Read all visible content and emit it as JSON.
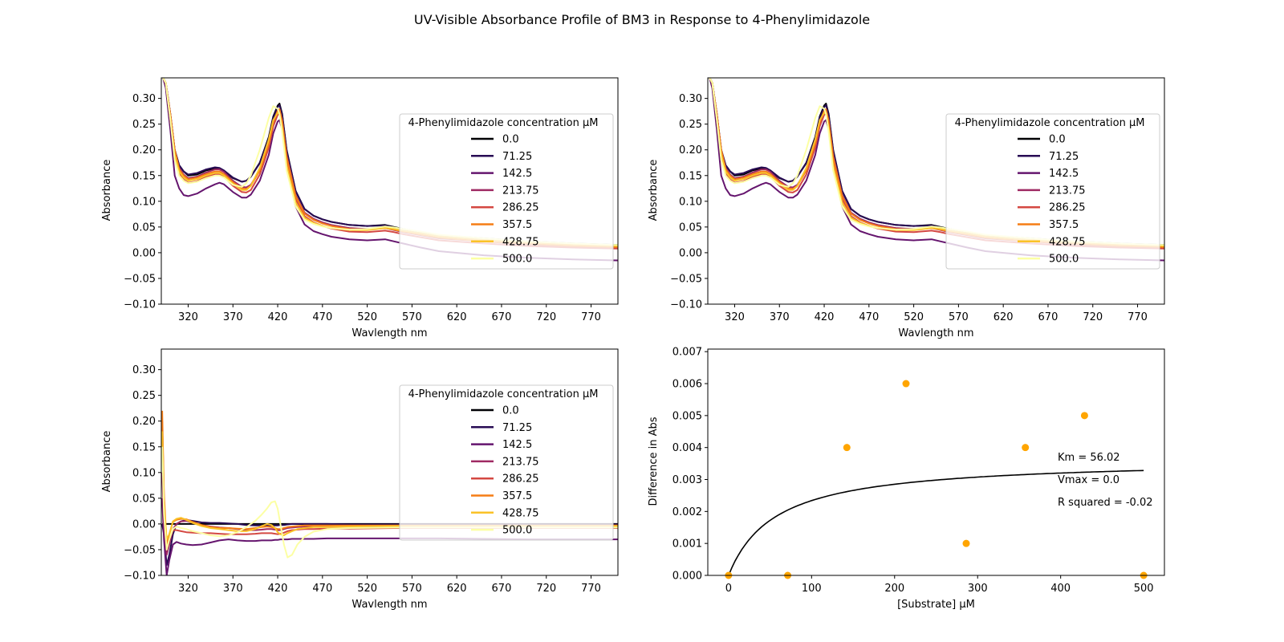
{
  "figure": {
    "suptitle": "UV-Visible Absorbance Profile of BM3 in Response to 4-Phenylimidazole"
  },
  "chart_data": [
    {
      "panel": "top-left",
      "type": "line",
      "xlabel": "Wavlength nm",
      "ylabel": "Absorbance",
      "xlim": [
        290,
        800
      ],
      "ylim": [
        -0.1,
        0.34
      ],
      "x_ticks": [
        320,
        370,
        420,
        470,
        520,
        570,
        620,
        670,
        720,
        770
      ],
      "y_ticks": [
        -0.1,
        -0.05,
        0.0,
        0.05,
        0.1,
        0.15,
        0.2,
        0.25,
        0.3
      ],
      "legend": {
        "title": "4-Phenylimidazole concentration µM",
        "placement": "right"
      },
      "x": [
        292,
        295,
        300,
        305,
        310,
        315,
        320,
        330,
        340,
        350,
        355,
        360,
        370,
        380,
        385,
        390,
        400,
        410,
        415,
        420,
        422,
        425,
        430,
        440,
        450,
        460,
        470,
        480,
        500,
        520,
        540,
        550,
        560,
        580,
        600,
        650,
        700,
        750,
        800
      ],
      "series": [
        {
          "name": "0.0",
          "color": "#000004",
          "values": [
            0.34,
            0.33,
            0.27,
            0.2,
            0.17,
            0.158,
            0.15,
            0.152,
            0.16,
            0.164,
            0.163,
            0.158,
            0.145,
            0.138,
            0.14,
            0.148,
            0.175,
            0.225,
            0.265,
            0.286,
            0.29,
            0.27,
            0.2,
            0.12,
            0.085,
            0.072,
            0.065,
            0.06,
            0.054,
            0.052,
            0.054,
            0.05,
            0.046,
            0.04,
            0.034,
            0.028,
            0.022,
            0.018,
            0.015
          ]
        },
        {
          "name": "71.25",
          "color": "#280b54",
          "values": [
            0.34,
            0.33,
            0.27,
            0.2,
            0.17,
            0.158,
            0.152,
            0.155,
            0.162,
            0.166,
            0.165,
            0.16,
            0.146,
            0.138,
            0.14,
            0.148,
            0.174,
            0.222,
            0.262,
            0.283,
            0.287,
            0.268,
            0.198,
            0.12,
            0.085,
            0.072,
            0.065,
            0.06,
            0.054,
            0.052,
            0.053,
            0.049,
            0.045,
            0.039,
            0.033,
            0.027,
            0.021,
            0.017,
            0.014
          ]
        },
        {
          "name": "142.5",
          "color": "#65156e",
          "values": [
            0.34,
            0.32,
            0.24,
            0.15,
            0.125,
            0.112,
            0.11,
            0.115,
            0.125,
            0.133,
            0.136,
            0.133,
            0.118,
            0.107,
            0.107,
            0.113,
            0.14,
            0.19,
            0.232,
            0.255,
            0.258,
            0.24,
            0.17,
            0.09,
            0.055,
            0.042,
            0.036,
            0.031,
            0.026,
            0.024,
            0.026,
            0.022,
            0.018,
            0.01,
            0.003,
            -0.005,
            -0.01,
            -0.013,
            -0.015
          ]
        },
        {
          "name": "213.75",
          "color": "#9f2a63",
          "values": [
            0.34,
            0.33,
            0.27,
            0.2,
            0.165,
            0.152,
            0.145,
            0.148,
            0.156,
            0.162,
            0.162,
            0.157,
            0.14,
            0.128,
            0.127,
            0.132,
            0.16,
            0.21,
            0.252,
            0.275,
            0.278,
            0.258,
            0.19,
            0.112,
            0.078,
            0.066,
            0.059,
            0.054,
            0.048,
            0.046,
            0.048,
            0.044,
            0.04,
            0.034,
            0.028,
            0.022,
            0.016,
            0.012,
            0.01
          ]
        },
        {
          "name": "286.25",
          "color": "#d44842",
          "values": [
            0.34,
            0.33,
            0.26,
            0.19,
            0.155,
            0.142,
            0.136,
            0.139,
            0.147,
            0.153,
            0.153,
            0.148,
            0.13,
            0.118,
            0.117,
            0.122,
            0.152,
            0.204,
            0.246,
            0.268,
            0.271,
            0.25,
            0.18,
            0.104,
            0.071,
            0.059,
            0.052,
            0.047,
            0.041,
            0.04,
            0.043,
            0.04,
            0.036,
            0.03,
            0.024,
            0.018,
            0.013,
            0.01,
            0.008
          ]
        },
        {
          "name": "357.5",
          "color": "#f57d15",
          "values": [
            0.34,
            0.33,
            0.27,
            0.2,
            0.162,
            0.15,
            0.143,
            0.146,
            0.153,
            0.158,
            0.158,
            0.153,
            0.137,
            0.125,
            0.124,
            0.13,
            0.16,
            0.212,
            0.254,
            0.276,
            0.279,
            0.256,
            0.186,
            0.11,
            0.076,
            0.064,
            0.057,
            0.052,
            0.046,
            0.045,
            0.048,
            0.045,
            0.041,
            0.035,
            0.029,
            0.022,
            0.017,
            0.013,
            0.011
          ]
        },
        {
          "name": "428.75",
          "color": "#fac228",
          "values": [
            0.34,
            0.33,
            0.26,
            0.19,
            0.158,
            0.146,
            0.14,
            0.143,
            0.15,
            0.155,
            0.155,
            0.15,
            0.134,
            0.122,
            0.122,
            0.13,
            0.165,
            0.22,
            0.258,
            0.272,
            0.27,
            0.242,
            0.17,
            0.098,
            0.068,
            0.058,
            0.052,
            0.048,
            0.044,
            0.044,
            0.048,
            0.046,
            0.043,
            0.038,
            0.032,
            0.025,
            0.02,
            0.016,
            0.013
          ]
        },
        {
          "name": "500.0",
          "color": "#fcffa4",
          "values": [
            0.34,
            0.33,
            0.26,
            0.18,
            0.15,
            0.14,
            0.135,
            0.138,
            0.145,
            0.15,
            0.15,
            0.146,
            0.132,
            0.128,
            0.135,
            0.15,
            0.2,
            0.262,
            0.285,
            0.28,
            0.27,
            0.235,
            0.16,
            0.09,
            0.064,
            0.056,
            0.051,
            0.048,
            0.045,
            0.046,
            0.051,
            0.049,
            0.046,
            0.041,
            0.035,
            0.028,
            0.022,
            0.018,
            0.015
          ]
        }
      ]
    },
    {
      "panel": "top-right",
      "type": "line",
      "xlabel": "Wavlength nm",
      "ylabel": "Absorbance",
      "xlim": [
        290,
        800
      ],
      "ylim": [
        -0.1,
        0.34
      ],
      "x_ticks": [
        320,
        370,
        420,
        470,
        520,
        570,
        620,
        670,
        720,
        770
      ],
      "y_ticks": [
        -0.1,
        -0.05,
        0.0,
        0.05,
        0.1,
        0.15,
        0.2,
        0.25,
        0.3
      ],
      "legend": {
        "title": "4-Phenylimidazole concentration µM",
        "placement": "right"
      },
      "same_series_as_panel": "top-left"
    },
    {
      "panel": "bottom-left",
      "type": "line",
      "xlabel": "Wavlength nm",
      "ylabel": "Absorbance",
      "xlim": [
        290,
        800
      ],
      "ylim": [
        -0.1,
        0.34
      ],
      "x_ticks": [
        320,
        370,
        420,
        470,
        520,
        570,
        620,
        670,
        720,
        770
      ],
      "y_ticks": [
        -0.1,
        -0.05,
        0.0,
        0.05,
        0.1,
        0.15,
        0.2,
        0.25,
        0.3
      ],
      "legend": {
        "title": "4-Phenylimidazole concentration µM",
        "placement": "right"
      },
      "x": [
        291,
        293,
        296,
        299,
        303,
        307,
        312,
        318,
        325,
        335,
        345,
        355,
        365,
        375,
        385,
        395,
        402,
        408,
        413,
        417,
        420,
        423,
        427,
        431,
        436,
        442,
        450,
        460,
        475,
        500,
        550,
        600,
        650,
        700,
        750,
        800
      ],
      "series": [
        {
          "name": "0.0",
          "color": "#000004",
          "values": [
            0.0,
            0.0,
            0.0,
            0.0,
            0.0,
            0.0,
            0.0,
            0.0,
            0.0,
            0.0,
            0.0,
            0.0,
            0.0,
            0.0,
            0.0,
            0.0,
            0.0,
            0.0,
            0.0,
            0.0,
            0.0,
            0.0,
            0.0,
            0.0,
            0.0,
            0.0,
            0.0,
            0.0,
            0.0,
            0.0,
            0.0,
            0.0,
            0.0,
            0.0,
            0.0,
            0.0
          ]
        },
        {
          "name": "71.25",
          "color": "#280b54",
          "values": [
            0.0,
            -0.02,
            -0.08,
            -0.06,
            -0.02,
            0.0,
            0.005,
            0.008,
            0.006,
            0.003,
            0.002,
            0.002,
            0.001,
            0.0,
            -0.002,
            -0.003,
            -0.003,
            -0.003,
            -0.003,
            -0.003,
            -0.003,
            -0.002,
            -0.002,
            -0.001,
            0.0,
            0.0,
            0.0,
            0.0,
            0.0,
            -0.001,
            -0.001,
            -0.001,
            -0.001,
            -0.001,
            -0.001,
            -0.001
          ]
        },
        {
          "name": "142.5",
          "color": "#65156e",
          "values": [
            0.05,
            -0.03,
            -0.1,
            -0.07,
            -0.04,
            -0.035,
            -0.038,
            -0.04,
            -0.041,
            -0.04,
            -0.036,
            -0.032,
            -0.03,
            -0.032,
            -0.033,
            -0.033,
            -0.032,
            -0.032,
            -0.032,
            -0.031,
            -0.031,
            -0.03,
            -0.03,
            -0.03,
            -0.029,
            -0.029,
            -0.029,
            -0.029,
            -0.028,
            -0.028,
            -0.028,
            -0.028,
            -0.029,
            -0.03,
            -0.03,
            -0.03
          ]
        },
        {
          "name": "213.75",
          "color": "#9f2a63",
          "values": [
            0.1,
            0.0,
            -0.06,
            -0.04,
            -0.01,
            0.0,
            0.005,
            0.006,
            0.002,
            -0.002,
            -0.005,
            -0.007,
            -0.008,
            -0.01,
            -0.012,
            -0.012,
            -0.011,
            -0.01,
            -0.01,
            -0.011,
            -0.012,
            -0.012,
            -0.01,
            -0.008,
            -0.007,
            -0.006,
            -0.005,
            -0.005,
            -0.005,
            -0.005,
            -0.005,
            -0.005,
            -0.005,
            -0.005,
            -0.005,
            -0.005
          ]
        },
        {
          "name": "286.25",
          "color": "#d44842",
          "values": [
            0.2,
            0.05,
            -0.05,
            -0.03,
            -0.012,
            -0.012,
            -0.014,
            -0.016,
            -0.017,
            -0.018,
            -0.018,
            -0.019,
            -0.02,
            -0.02,
            -0.02,
            -0.019,
            -0.018,
            -0.018,
            -0.018,
            -0.019,
            -0.02,
            -0.019,
            -0.017,
            -0.014,
            -0.012,
            -0.011,
            -0.01,
            -0.01,
            -0.009,
            -0.009,
            -0.008,
            -0.008,
            -0.008,
            -0.008,
            -0.008,
            -0.008
          ]
        },
        {
          "name": "357.5",
          "color": "#f57d15",
          "values": [
            0.22,
            0.06,
            -0.04,
            -0.02,
            0.004,
            0.008,
            0.01,
            0.009,
            0.004,
            -0.002,
            -0.006,
            -0.008,
            -0.008,
            -0.009,
            -0.01,
            -0.008,
            -0.006,
            -0.005,
            -0.006,
            -0.008,
            -0.01,
            -0.01,
            -0.008,
            -0.006,
            -0.005,
            -0.004,
            -0.003,
            -0.003,
            -0.003,
            -0.003,
            -0.003,
            -0.003,
            -0.003,
            -0.003,
            -0.003,
            -0.003
          ]
        },
        {
          "name": "428.75",
          "color": "#fac228",
          "values": [
            0.18,
            0.04,
            -0.03,
            -0.02,
            0.005,
            0.01,
            0.012,
            0.008,
            0.002,
            -0.004,
            -0.008,
            -0.01,
            -0.012,
            -0.014,
            -0.014,
            -0.01,
            -0.004,
            0.0,
            -0.002,
            -0.008,
            -0.016,
            -0.02,
            -0.022,
            -0.018,
            -0.014,
            -0.01,
            -0.008,
            -0.006,
            -0.006,
            -0.005,
            -0.004,
            -0.004,
            -0.004,
            -0.004,
            -0.004,
            -0.004
          ]
        },
        {
          "name": "500.0",
          "color": "#fcffa4",
          "values": [
            0.15,
            0.02,
            -0.05,
            -0.03,
            -0.01,
            -0.005,
            -0.008,
            -0.01,
            -0.014,
            -0.018,
            -0.022,
            -0.024,
            -0.022,
            -0.016,
            -0.006,
            0.006,
            0.018,
            0.03,
            0.042,
            0.044,
            0.03,
            0.0,
            -0.04,
            -0.065,
            -0.06,
            -0.04,
            -0.025,
            -0.015,
            -0.01,
            -0.008,
            -0.007,
            -0.007,
            -0.007,
            -0.007,
            -0.007,
            -0.007
          ]
        }
      ]
    },
    {
      "panel": "bottom-right",
      "type": "scatter",
      "xlabel": "[Substrate] µM",
      "ylabel": "Difference in Abs",
      "xlim": [
        -25,
        525
      ],
      "ylim": [
        0.0,
        0.00708
      ],
      "x_ticks": [
        0,
        100,
        200,
        300,
        400,
        500
      ],
      "y_ticks": [
        0.0,
        0.001,
        0.002,
        0.003,
        0.004,
        0.005,
        0.006,
        0.007
      ],
      "points": {
        "color": "#ffa500",
        "x": [
          0.0,
          71.25,
          142.5,
          213.75,
          286.25,
          357.5,
          428.75,
          500.0
        ],
        "y": [
          0.0,
          0.0,
          0.004,
          0.006,
          0.001,
          0.004,
          0.005,
          0.0
        ]
      },
      "fit": {
        "color": "#000000",
        "model": "michaelis-menten",
        "km": 56.02,
        "asymptote": 0.00365
      },
      "annotations": [
        "Km = 56.02",
        "Vmax = 0.0",
        "R squared = -0.02"
      ]
    }
  ]
}
